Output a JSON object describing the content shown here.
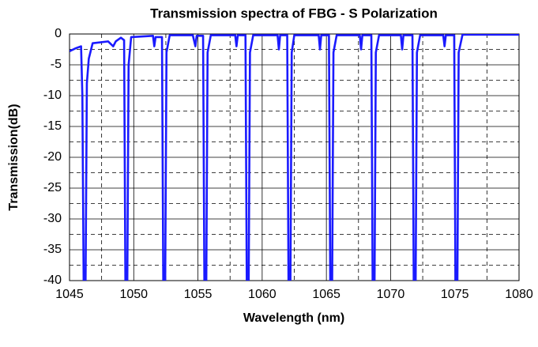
{
  "chart_data": {
    "type": "line",
    "title": "Transmission spectra of FBG - S Polarization",
    "xlabel": "Wavelength (nm)",
    "ylabel": "Transmission(dB)",
    "x": [
      1045.0,
      1045.5,
      1045.9,
      1046.0,
      1046.1,
      1046.25,
      1046.35,
      1046.5,
      1046.8,
      1048.0,
      1048.4,
      1048.6,
      1049.0,
      1049.25,
      1049.35,
      1049.5,
      1049.6,
      1049.8,
      1051.5,
      1051.6,
      1051.7,
      1052.2,
      1052.3,
      1052.45,
      1052.55,
      1052.8,
      1054.6,
      1054.8,
      1054.9,
      1055.4,
      1055.5,
      1055.65,
      1055.75,
      1056.0,
      1057.9,
      1058.0,
      1058.1,
      1058.7,
      1058.8,
      1058.95,
      1059.05,
      1059.3,
      1061.2,
      1061.3,
      1061.4,
      1061.95,
      1062.05,
      1062.2,
      1062.3,
      1062.5,
      1064.4,
      1064.5,
      1064.6,
      1065.2,
      1065.3,
      1065.45,
      1065.55,
      1065.8,
      1067.6,
      1067.7,
      1067.8,
      1068.5,
      1068.6,
      1068.75,
      1068.85,
      1069.1,
      1070.8,
      1070.9,
      1071.0,
      1071.7,
      1071.8,
      1071.95,
      1072.05,
      1072.3,
      1074.1,
      1074.2,
      1074.3,
      1074.95,
      1075.05,
      1075.2,
      1075.3,
      1075.6,
      1080.0
    ],
    "series": [
      {
        "name": "S Polarization",
        "color": "#1a1aff",
        "values": [
          -2.8,
          -2.3,
          -2.0,
          -10,
          -40,
          -40,
          -8,
          -4.0,
          -1.5,
          -1.2,
          -2.0,
          -1.2,
          -0.6,
          -1.0,
          -40,
          -40,
          -5,
          -0.5,
          -0.3,
          -2.0,
          -0.5,
          -0.5,
          -40,
          -40,
          -3,
          -0.2,
          -0.2,
          -2.0,
          -0.3,
          -0.3,
          -40,
          -40,
          -3,
          -0.2,
          -0.2,
          -2.0,
          -0.2,
          -0.2,
          -40,
          -40,
          -3,
          -0.2,
          -0.2,
          -2.5,
          -0.2,
          -0.2,
          -40,
          -40,
          -3,
          -0.2,
          -0.2,
          -2.5,
          -0.2,
          -0.2,
          -40,
          -40,
          -3,
          -0.2,
          -0.2,
          -2.5,
          -0.2,
          -0.2,
          -40,
          -40,
          -3,
          -0.2,
          -0.2,
          -2.5,
          -0.2,
          -0.2,
          -40,
          -40,
          -3,
          -0.2,
          -0.2,
          -2.0,
          -0.2,
          -0.2,
          -40,
          -40,
          -3,
          -0.1,
          -0.1
        ]
      }
    ],
    "xlim": [
      1045,
      1080
    ],
    "xticks": [
      1045,
      1050,
      1055,
      1060,
      1065,
      1070,
      1075,
      1080
    ],
    "ylim": [
      -40,
      0
    ],
    "yticks": [
      0,
      -5,
      -10,
      -15,
      -20,
      -25,
      -30,
      -35,
      -40
    ],
    "minor_xticks": [
      1047.5,
      1052.5,
      1057.5,
      1062.5,
      1067.5,
      1072.5,
      1077.5
    ],
    "minor_yticks": [
      -2.5,
      -7.5,
      -12.5,
      -17.5,
      -22.5,
      -27.5,
      -32.5,
      -37.5
    ],
    "grid": true
  }
}
